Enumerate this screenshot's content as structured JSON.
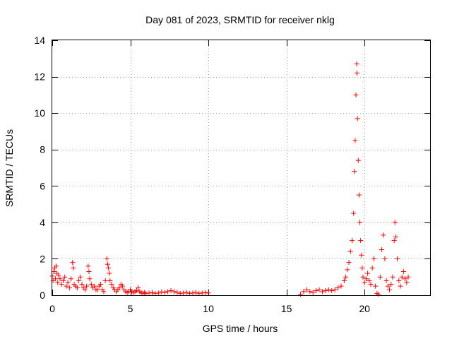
{
  "chart_data": {
    "type": "scatter",
    "title": "Day 081 of 2023, SRMTID for receiver nklg",
    "xlabel": "GPS time / hours",
    "ylabel": "SRMTID / TECUs",
    "xlim": [
      0,
      24.2
    ],
    "ylim": [
      0,
      14
    ],
    "xticks": [
      0,
      5,
      10,
      15,
      20
    ],
    "yticks": [
      0,
      2,
      4,
      6,
      8,
      10,
      12,
      14
    ],
    "grid": true,
    "marker": "+",
    "color": "#ff0000",
    "series": [
      {
        "name": "SRMTID",
        "points": [
          [
            0.0,
            1.05
          ],
          [
            0.05,
            0.8
          ],
          [
            0.1,
            1.3
          ],
          [
            0.15,
            1.5
          ],
          [
            0.2,
            0.9
          ],
          [
            0.25,
            1.6
          ],
          [
            0.3,
            1.2
          ],
          [
            0.35,
            0.7
          ],
          [
            0.4,
            1.1
          ],
          [
            0.5,
            0.9
          ],
          [
            0.6,
            0.6
          ],
          [
            0.7,
            0.8
          ],
          [
            0.8,
            1.0
          ],
          [
            0.9,
            0.5
          ],
          [
            1.0,
            0.7
          ],
          [
            1.1,
            0.4
          ],
          [
            1.2,
            0.9
          ],
          [
            1.3,
            1.8
          ],
          [
            1.35,
            1.5
          ],
          [
            1.4,
            0.6
          ],
          [
            1.5,
            0.5
          ],
          [
            1.6,
            0.4
          ],
          [
            1.7,
            0.8
          ],
          [
            1.8,
            1.0
          ],
          [
            1.9,
            0.6
          ],
          [
            2.0,
            0.4
          ],
          [
            2.1,
            0.3
          ],
          [
            2.2,
            0.5
          ],
          [
            2.3,
            1.6
          ],
          [
            2.35,
            1.3
          ],
          [
            2.4,
            0.9
          ],
          [
            2.5,
            0.6
          ],
          [
            2.6,
            0.4
          ],
          [
            2.7,
            0.5
          ],
          [
            2.8,
            0.3
          ],
          [
            2.9,
            0.3
          ],
          [
            3.0,
            0.5
          ],
          [
            3.1,
            0.6
          ],
          [
            3.2,
            0.3
          ],
          [
            3.3,
            0.2
          ],
          [
            3.4,
            0.8
          ],
          [
            3.5,
            2.0
          ],
          [
            3.55,
            1.7
          ],
          [
            3.6,
            1.5
          ],
          [
            3.65,
            1.2
          ],
          [
            3.7,
            0.8
          ],
          [
            3.8,
            0.6
          ],
          [
            3.9,
            0.4
          ],
          [
            4.0,
            0.3
          ],
          [
            4.1,
            0.2
          ],
          [
            4.2,
            0.3
          ],
          [
            4.3,
            0.4
          ],
          [
            4.4,
            0.6
          ],
          [
            4.5,
            0.5
          ],
          [
            4.6,
            0.3
          ],
          [
            4.7,
            0.2
          ],
          [
            4.8,
            0.15
          ],
          [
            4.9,
            0.2
          ],
          [
            5.0,
            0.3
          ],
          [
            5.1,
            0.2
          ],
          [
            5.2,
            0.15
          ],
          [
            5.3,
            0.2
          ],
          [
            5.4,
            0.25
          ],
          [
            5.5,
            0.4
          ],
          [
            5.6,
            0.2
          ],
          [
            5.7,
            0.15
          ],
          [
            5.8,
            0.1
          ],
          [
            5.9,
            0.15
          ],
          [
            6.0,
            0.1
          ],
          [
            6.2,
            0.12
          ],
          [
            6.4,
            0.15
          ],
          [
            6.6,
            0.1
          ],
          [
            6.8,
            0.12
          ],
          [
            7.0,
            0.18
          ],
          [
            7.2,
            0.15
          ],
          [
            7.4,
            0.2
          ],
          [
            7.6,
            0.25
          ],
          [
            7.8,
            0.2
          ],
          [
            8.0,
            0.15
          ],
          [
            8.2,
            0.1
          ],
          [
            8.4,
            0.12
          ],
          [
            8.6,
            0.15
          ],
          [
            8.8,
            0.1
          ],
          [
            9.0,
            0.12
          ],
          [
            9.2,
            0.15
          ],
          [
            9.4,
            0.1
          ],
          [
            9.6,
            0.12
          ],
          [
            9.8,
            0.15
          ],
          [
            10.0,
            0.12
          ],
          [
            15.9,
            0.05
          ],
          [
            16.1,
            0.2
          ],
          [
            16.3,
            0.3
          ],
          [
            16.5,
            0.2
          ],
          [
            16.7,
            0.15
          ],
          [
            16.9,
            0.25
          ],
          [
            17.1,
            0.3
          ],
          [
            17.3,
            0.2
          ],
          [
            17.5,
            0.25
          ],
          [
            17.7,
            0.3
          ],
          [
            17.9,
            0.25
          ],
          [
            18.1,
            0.3
          ],
          [
            18.3,
            0.4
          ],
          [
            18.5,
            0.5
          ],
          [
            18.7,
            0.8
          ],
          [
            18.8,
            1.0
          ],
          [
            18.9,
            1.4
          ],
          [
            19.0,
            1.8
          ],
          [
            19.1,
            2.4
          ],
          [
            19.2,
            3.0
          ],
          [
            19.3,
            4.5
          ],
          [
            19.35,
            6.8
          ],
          [
            19.4,
            8.5
          ],
          [
            19.45,
            11.0
          ],
          [
            19.5,
            12.7
          ],
          [
            19.52,
            12.2
          ],
          [
            19.55,
            9.7
          ],
          [
            19.6,
            7.4
          ],
          [
            19.65,
            5.5
          ],
          [
            19.7,
            4.0
          ],
          [
            19.75,
            3.0
          ],
          [
            19.8,
            2.2
          ],
          [
            19.85,
            1.5
          ],
          [
            19.9,
            1.0
          ],
          [
            20.0,
            0.7
          ],
          [
            20.1,
            0.9
          ],
          [
            20.2,
            1.2
          ],
          [
            20.3,
            0.8
          ],
          [
            20.4,
            0.6
          ],
          [
            20.5,
            1.5
          ],
          [
            20.6,
            2.0
          ],
          [
            20.7,
            0.5
          ],
          [
            20.8,
            0.1
          ],
          [
            20.9,
            0.05
          ],
          [
            21.0,
            1.0
          ],
          [
            21.1,
            2.5
          ],
          [
            21.2,
            3.3
          ],
          [
            21.3,
            2.0
          ],
          [
            21.4,
            0.8
          ],
          [
            21.5,
            0.5
          ],
          [
            21.6,
            0.3
          ],
          [
            21.7,
            0.6
          ],
          [
            21.8,
            1.0
          ],
          [
            21.9,
            3.0
          ],
          [
            21.95,
            4.0
          ],
          [
            22.0,
            3.2
          ],
          [
            22.1,
            2.0
          ],
          [
            22.2,
            0.8
          ],
          [
            22.3,
            0.5
          ],
          [
            22.4,
            1.0
          ],
          [
            22.5,
            1.3
          ],
          [
            22.6,
            0.9
          ],
          [
            22.7,
            0.7
          ],
          [
            22.8,
            1.0
          ]
        ]
      }
    ]
  }
}
